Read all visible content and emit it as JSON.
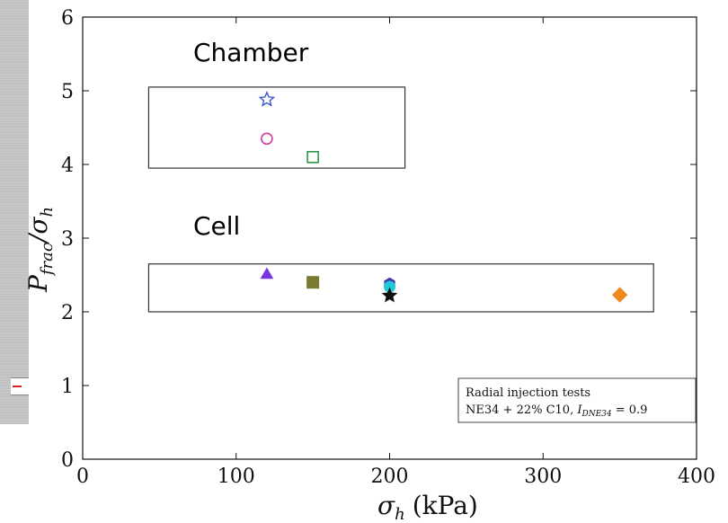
{
  "chart_data": {
    "type": "scatter",
    "xlabel_symbol": "σ",
    "xlabel_sub": "h",
    "xlabel_unit": "(kPa)",
    "ylabel_symbol": "P",
    "ylabel_sub": "frac",
    "ylabel_slash": "/σ",
    "ylabel_sub2": "h",
    "xlim": [
      0,
      400
    ],
    "ylim": [
      0,
      6
    ],
    "x_ticks": [
      0,
      100,
      200,
      300,
      400
    ],
    "y_ticks": [
      0,
      1,
      2,
      3,
      4,
      5,
      6
    ],
    "annotations": [
      {
        "text": "Chamber",
        "x": 72,
        "y": 5.4
      },
      {
        "text": "Cell",
        "x": 72,
        "y": 3.0
      }
    ],
    "boxes": [
      {
        "label": "Chamber",
        "x_range": [
          43,
          210
        ],
        "y_range": [
          3.95,
          5.05
        ]
      },
      {
        "label": "Cell",
        "x_range": [
          43,
          372
        ],
        "y_range": [
          2.0,
          2.65
        ]
      }
    ],
    "points": [
      {
        "x": 120,
        "y": 4.88,
        "marker": "star-open",
        "color": "#3a55c8"
      },
      {
        "x": 120,
        "y": 4.35,
        "marker": "circle-open",
        "color": "#d23aa0"
      },
      {
        "x": 150,
        "y": 4.1,
        "marker": "square-open",
        "color": "#2a9a4a"
      },
      {
        "x": 120,
        "y": 2.5,
        "marker": "triangle",
        "color": "#7a35e0"
      },
      {
        "x": 150,
        "y": 2.4,
        "marker": "square",
        "color": "#7a7a30"
      },
      {
        "x": 200,
        "y": 2.38,
        "marker": "hexagon",
        "color": "#3a3aa8"
      },
      {
        "x": 200,
        "y": 2.34,
        "marker": "circle",
        "color": "#22c8d8"
      },
      {
        "x": 200,
        "y": 2.22,
        "marker": "star",
        "color": "#111111"
      },
      {
        "x": 350,
        "y": 2.23,
        "marker": "diamond",
        "color": "#f08a20"
      }
    ],
    "legend": {
      "line1": "Radial injection tests",
      "line2_prefix": "NE34 + 22% C10, ",
      "line2_sym": "I",
      "line2_sub": "DNE34",
      "line2_suffix": " = 0.9",
      "placement": "bottom-right"
    }
  }
}
